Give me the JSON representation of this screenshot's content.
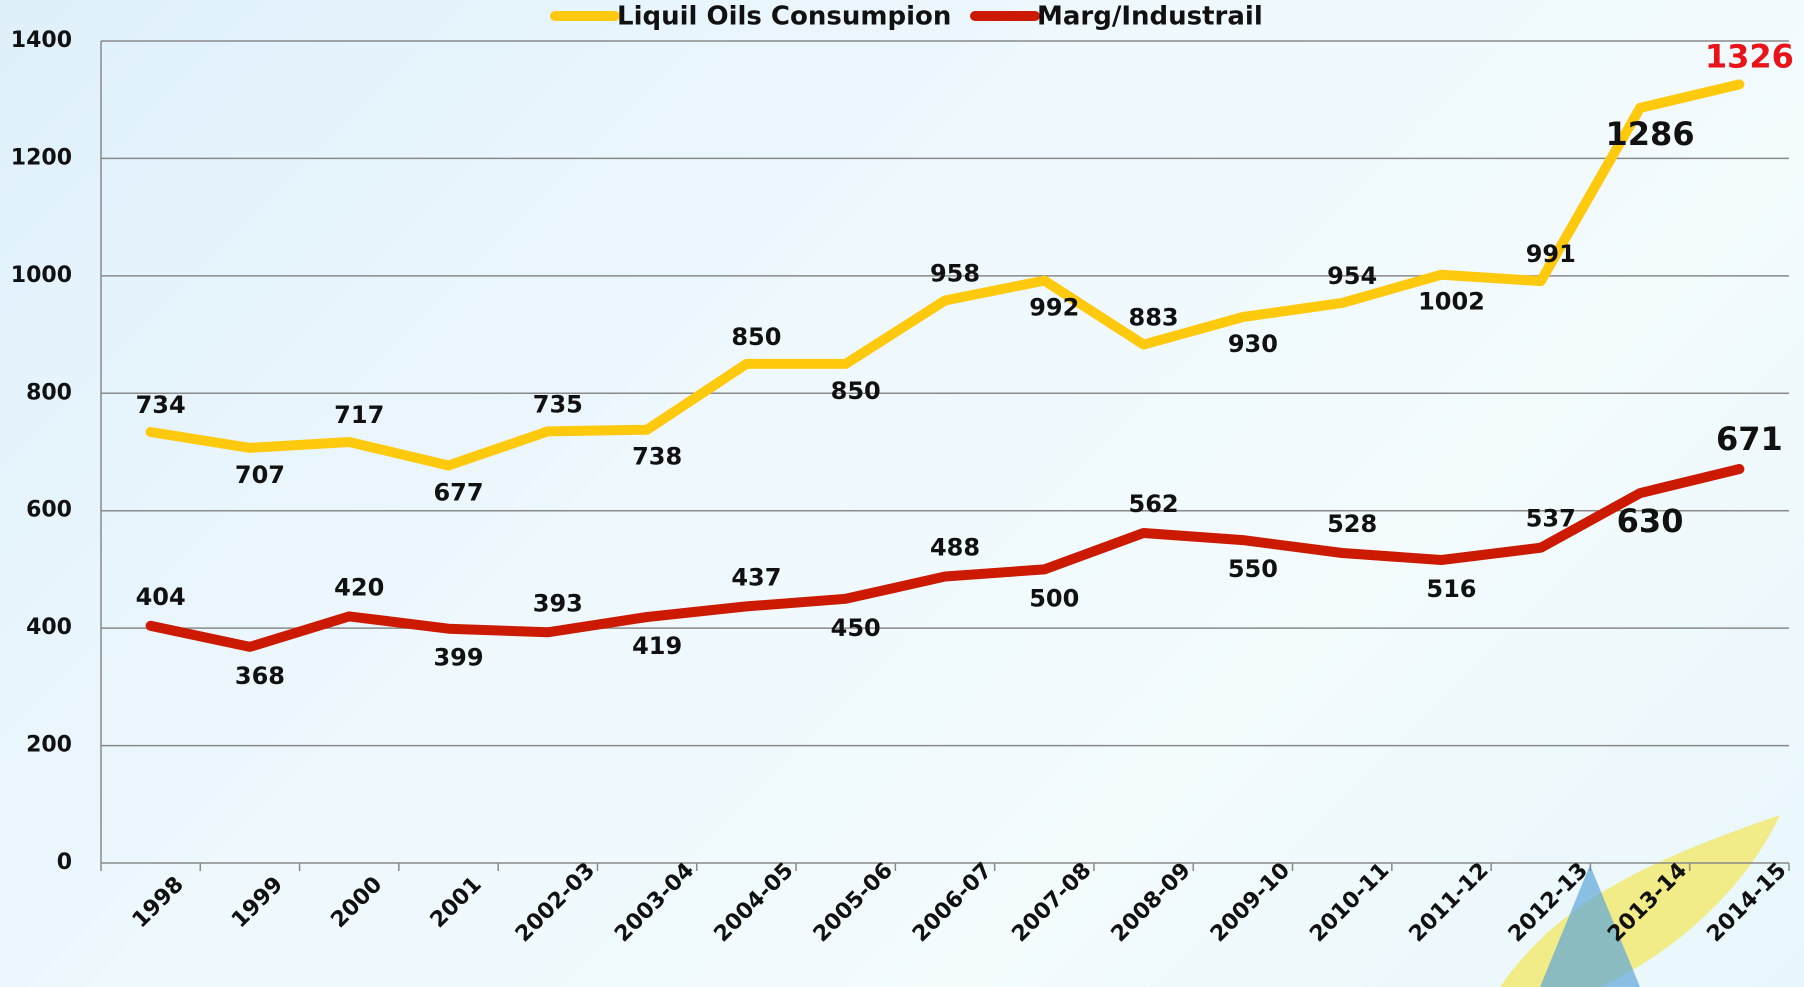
{
  "chart_data": {
    "type": "line",
    "categories": [
      "1998",
      "1999",
      "2000",
      "2001",
      "2002-03",
      "2003-04",
      "2004-05",
      "2005-06",
      "2006-07",
      "2007-08",
      "2008-09",
      "2009-10",
      "2010-11",
      "2011-12",
      "2012-13",
      "2013-14",
      "2014-15"
    ],
    "series": [
      {
        "name": "Liquil Oils Consumpion",
        "color": "#ffc90e",
        "values": [
          734,
          707,
          717,
          677,
          735,
          738,
          850,
          850,
          958,
          992,
          883,
          930,
          954,
          1002,
          991,
          1286,
          1326
        ]
      },
      {
        "name": "Marg/Industrail",
        "color": "#cc1a00",
        "values": [
          404,
          368,
          420,
          399,
          393,
          419,
          437,
          450,
          488,
          500,
          562,
          550,
          528,
          516,
          537,
          630,
          671
        ]
      }
    ],
    "ylim": [
      0,
      1400
    ],
    "yticks": [
      0,
      200,
      400,
      600,
      800,
      1000,
      1200,
      1400
    ],
    "grid": true,
    "legend": "top"
  }
}
